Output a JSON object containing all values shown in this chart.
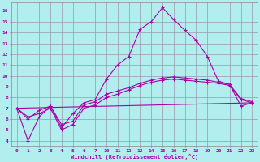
{
  "xlabel": "Windchill (Refroidissement éolien,°C)",
  "bg_color": "#b2eeee",
  "grid_color": "#9999aa",
  "line_color": "#aa00aa",
  "ylim": [
    3.5,
    16.8
  ],
  "x_labels": [
    "0",
    "1",
    "2",
    "3",
    "4",
    "5",
    "6",
    "7",
    "10",
    "11",
    "12",
    "13",
    "14",
    "15",
    "16",
    "17",
    "18",
    "19",
    "20",
    "21",
    "22",
    "23"
  ],
  "series": [
    {
      "y": [
        7.0,
        4.0,
        6.2,
        7.2,
        5.2,
        6.5,
        7.5,
        7.8,
        9.7,
        11.0,
        11.8,
        14.3,
        15.0,
        16.3,
        15.2,
        14.2,
        13.3,
        11.8,
        9.5,
        9.2,
        7.2,
        7.5
      ]
    },
    {
      "y": [
        7.0,
        6.2,
        6.5,
        7.0,
        5.0,
        5.5,
        7.0,
        7.3,
        8.0,
        8.3,
        8.7,
        9.1,
        9.4,
        9.6,
        9.7,
        9.6,
        9.5,
        9.4,
        9.3,
        9.1,
        7.8,
        7.5
      ]
    },
    {
      "y": [
        7.0,
        6.0,
        6.8,
        7.2,
        5.5,
        5.8,
        7.3,
        7.6,
        8.3,
        8.6,
        8.9,
        9.3,
        9.6,
        9.8,
        9.9,
        9.8,
        9.7,
        9.6,
        9.4,
        9.2,
        7.9,
        7.6
      ]
    },
    {
      "y": [
        7.0,
        null,
        null,
        null,
        null,
        null,
        null,
        null,
        null,
        null,
        null,
        null,
        null,
        null,
        null,
        null,
        null,
        null,
        null,
        null,
        null,
        7.5
      ]
    }
  ]
}
